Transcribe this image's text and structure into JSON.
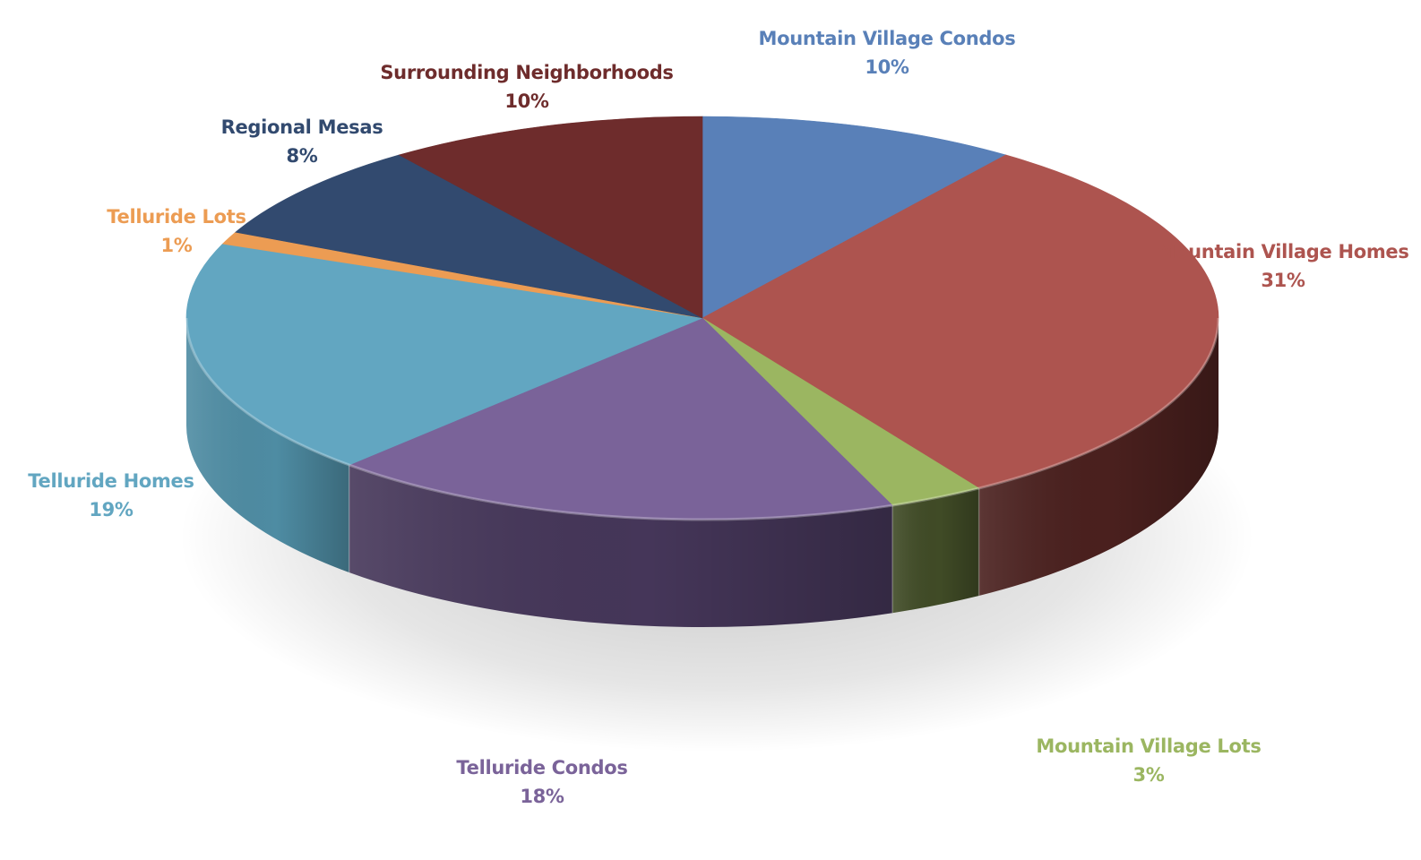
{
  "chart_data": {
    "type": "pie",
    "style": "3d",
    "title": "",
    "legend": "none",
    "slices": [
      {
        "label": "Mountain Village Condos",
        "value": 10,
        "value_label": "10%",
        "color": "#5980B8",
        "side_color": "#34507C"
      },
      {
        "label": "Mountain Village Homes",
        "value": 31,
        "value_label": "31%",
        "color": "#AD544F",
        "side_color": "#4A201E"
      },
      {
        "label": "Mountain Village Lots",
        "value": 3,
        "value_label": "3%",
        "color": "#9BB661",
        "side_color": "#404B26"
      },
      {
        "label": "Telluride Condos",
        "value": 18,
        "value_label": "18%",
        "color": "#7A6399",
        "side_color": "#453659"
      },
      {
        "label": "Telluride Homes",
        "value": 19,
        "value_label": "19%",
        "color": "#62A6C1",
        "side_color": "#4E8CA3"
      },
      {
        "label": "Telluride Lots",
        "value": 1,
        "value_label": "1%",
        "color": "#EC9C53",
        "side_color": "#B8743A"
      },
      {
        "label": "Regional Mesas",
        "value": 8,
        "value_label": "8%",
        "color": "#324A6F",
        "side_color": "#1F2F47"
      },
      {
        "label": "Surrounding Neighborhoods",
        "value": 10,
        "value_label": "10%",
        "color": "#6E2C2C",
        "side_color": "#4A1C1C"
      }
    ]
  }
}
